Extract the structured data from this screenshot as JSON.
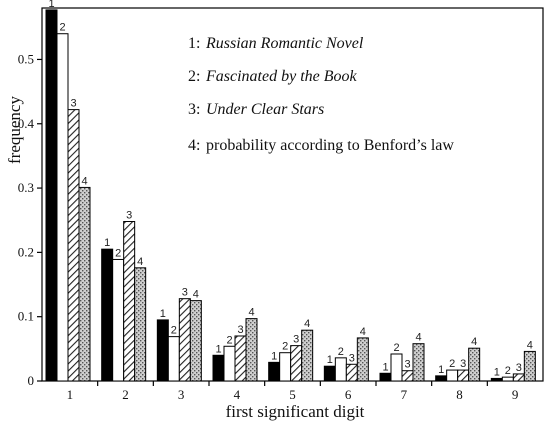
{
  "chart_data": {
    "type": "bar",
    "xlabel": "first significant digit",
    "ylabel": "frequency",
    "ylim": [
      0,
      0.58
    ],
    "yticks": [
      "0",
      "0.1",
      "0.2",
      "0.3",
      "0.4",
      "0.5"
    ],
    "categories": [
      "1",
      "2",
      "3",
      "4",
      "5",
      "6",
      "7",
      "8",
      "9"
    ],
    "legend_placement": "top-right",
    "legend": [
      {
        "number": "1:",
        "text": "Russian Romantic Novel",
        "italic": true
      },
      {
        "number": "2:",
        "text": "Fascinated by the Book",
        "italic": true
      },
      {
        "number": "3:",
        "text": "Under Clear Stars",
        "italic": true
      },
      {
        "number": "4:",
        "text": "probability according to Benford’s law",
        "italic": false
      }
    ],
    "series": [
      {
        "label": "1",
        "fill": "black",
        "values": [
          0.577,
          0.205,
          0.095,
          0.04,
          0.029,
          0.023,
          0.012,
          0.008,
          0.004
        ]
      },
      {
        "label": "2",
        "fill": "white",
        "values": [
          0.54,
          0.189,
          0.069,
          0.054,
          0.044,
          0.036,
          0.042,
          0.017,
          0.006
        ]
      },
      {
        "label": "3",
        "fill": "hatch",
        "values": [
          0.422,
          0.248,
          0.128,
          0.07,
          0.055,
          0.026,
          0.016,
          0.017,
          0.011
        ]
      },
      {
        "label": "4",
        "fill": "stipple",
        "values": [
          0.301,
          0.176,
          0.125,
          0.097,
          0.079,
          0.067,
          0.058,
          0.051,
          0.046
        ]
      }
    ]
  }
}
